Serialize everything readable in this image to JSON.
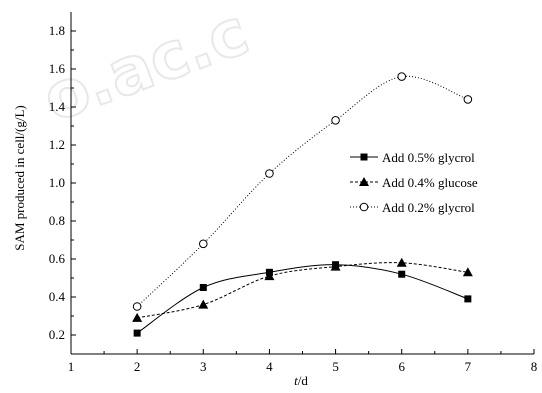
{
  "chart_data": {
    "type": "line",
    "title": "",
    "xlabel_italic": "t",
    "xlabel_unit": "/d",
    "ylabel": "SAM produced in cell/(g/L)",
    "xlim": [
      1,
      8
    ],
    "ylim": [
      0.1,
      1.9
    ],
    "xticks": [
      "1",
      "2",
      "3",
      "4",
      "5",
      "6",
      "7",
      "8"
    ],
    "yticks": [
      "0.2",
      "0.4",
      "0.6",
      "0.8",
      "1.0",
      "1.2",
      "1.4",
      "1.6",
      "1.8"
    ],
    "x": [
      2,
      3,
      4,
      5,
      6,
      7
    ],
    "grid": false,
    "legend_position": "right",
    "series": [
      {
        "name": "Add 0.5% glycrol",
        "marker": "square",
        "line": "solid",
        "values": [
          0.21,
          0.45,
          0.53,
          0.57,
          0.52,
          0.39
        ]
      },
      {
        "name": "Add 0.4% glucose",
        "marker": "triangle",
        "line": "dashed",
        "values": [
          0.29,
          0.36,
          0.51,
          0.56,
          0.58,
          0.53
        ]
      },
      {
        "name": "Add 0.2% glycrol",
        "marker": "circle",
        "line": "dotted",
        "values": [
          0.35,
          0.68,
          1.05,
          1.33,
          1.56,
          1.44
        ]
      }
    ]
  },
  "watermark": "o.ac.c"
}
